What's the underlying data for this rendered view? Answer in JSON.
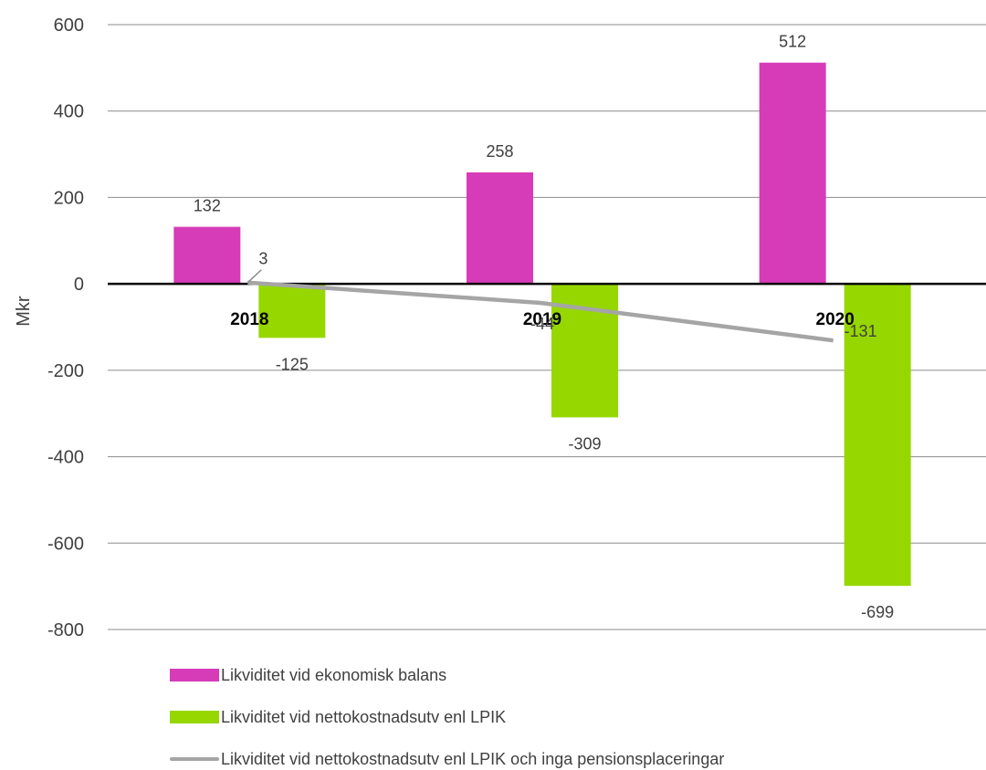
{
  "chart_data": {
    "type": "bar",
    "categories": [
      "2018",
      "2019",
      "2020"
    ],
    "ylabel": "Mkr",
    "ylim": [
      -800,
      600
    ],
    "yticks": [
      600,
      400,
      200,
      0,
      -200,
      -400,
      -600,
      -800
    ],
    "ytick_labels": [
      "600",
      "400",
      "200",
      "0",
      "-200",
      "-400",
      "-600",
      "-800"
    ],
    "grid": true,
    "legend_position": "bottom-left",
    "series": [
      {
        "name": "Likviditet vid ekonomisk balans",
        "kind": "bar",
        "color": "#D63BB8",
        "values": [
          132,
          258,
          512
        ],
        "labels": [
          "132",
          "258",
          "512"
        ]
      },
      {
        "name": "Likviditet vid nettokostnadsutv enl LPIK",
        "kind": "bar",
        "color": "#96D700",
        "values": [
          -125,
          -309,
          -699
        ],
        "labels": [
          "-125",
          "-309",
          "-699"
        ]
      },
      {
        "name": "Likviditet vid nettokostnadsutv enl LPIK och inga pensionsplaceringar",
        "kind": "line",
        "color": "#A5A5A5",
        "values": [
          3,
          -44,
          -131
        ],
        "labels": [
          "3",
          "-44",
          "-131"
        ]
      }
    ]
  }
}
